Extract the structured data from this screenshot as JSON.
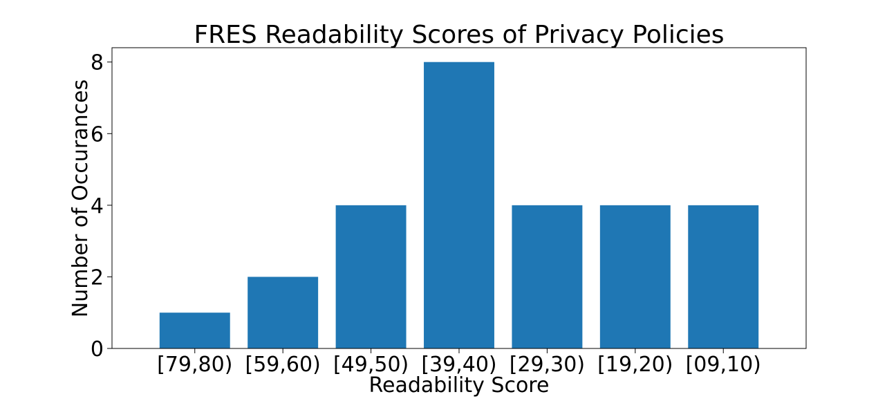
{
  "chart_data": {
    "type": "bar",
    "title": "FRES Readability Scores of Privacy Policies",
    "xlabel": "Readability Score",
    "ylabel": "Number of Occurances",
    "categories": [
      "[79,80)",
      "[59,60)",
      "[49,50)",
      "[39,40)",
      "[29,30)",
      "[19,20)",
      "[09,10)"
    ],
    "values": [
      1,
      2,
      4,
      8,
      4,
      4,
      4
    ],
    "ylim": [
      0,
      8.4
    ],
    "yticks": [
      0,
      2,
      4,
      6,
      8
    ],
    "grid": false,
    "legend": "none",
    "bar_color": "#1f77b4"
  }
}
